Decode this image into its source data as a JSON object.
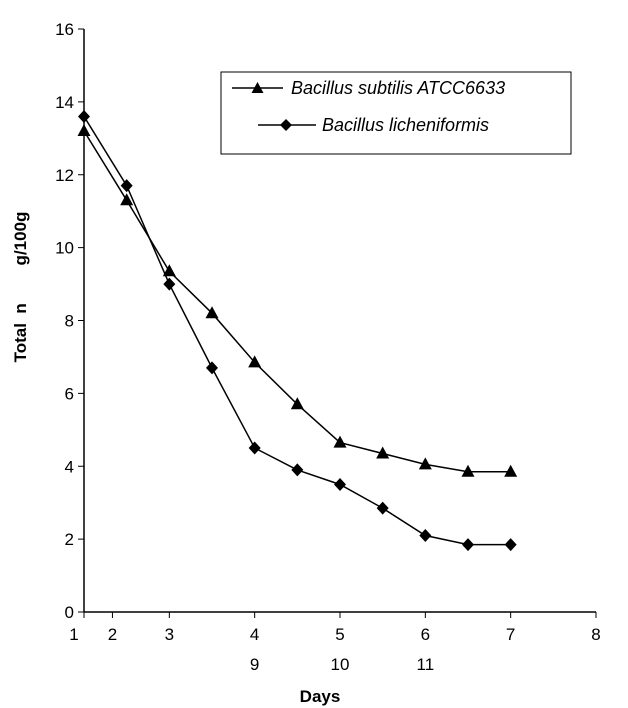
{
  "chart_data": {
    "type": "line",
    "xlabel": "Days",
    "ylabel": "Total  n        g/100g",
    "ylim": [
      0,
      16
    ],
    "y_ticks": [
      0,
      2,
      4,
      6,
      8,
      10,
      12,
      14,
      16
    ],
    "x_ticks_primary": [
      {
        "label": "1",
        "x": 0
      },
      {
        "label": "2",
        "x": 1
      },
      {
        "label": "3",
        "x": 3
      },
      {
        "label": "4",
        "x": 6
      },
      {
        "label": "5",
        "x": 9
      },
      {
        "label": "6",
        "x": 12
      },
      {
        "label": "7",
        "x": 15
      },
      {
        "label": "8",
        "x": 18
      }
    ],
    "x_ticks_secondary": [
      {
        "label": "9",
        "x": 6
      },
      {
        "label": "10",
        "x": 9
      },
      {
        "label": "11",
        "x": 12
      }
    ],
    "xlim": [
      0,
      18
    ],
    "grid": false,
    "legend_position": "top-right",
    "series": [
      {
        "name": "Bacillus subtilis ATCC6633",
        "marker": "triangle",
        "color": "#000000",
        "x": [
          0,
          1.5,
          3,
          4.5,
          6,
          7.5,
          9,
          10.5,
          12,
          13.5,
          15
        ],
        "y": [
          13.2,
          11.3,
          9.35,
          8.2,
          6.85,
          5.7,
          4.65,
          4.35,
          4.05,
          3.85,
          3.85
        ]
      },
      {
        "name": "Bacillus licheniformis",
        "marker": "diamond",
        "color": "#000000",
        "x": [
          0,
          1.5,
          3,
          4.5,
          6,
          7.5,
          9,
          10.5,
          12,
          13.5,
          15
        ],
        "y": [
          13.6,
          11.7,
          9.0,
          6.7,
          4.5,
          3.9,
          3.5,
          2.85,
          2.1,
          1.85,
          1.85
        ]
      }
    ]
  }
}
